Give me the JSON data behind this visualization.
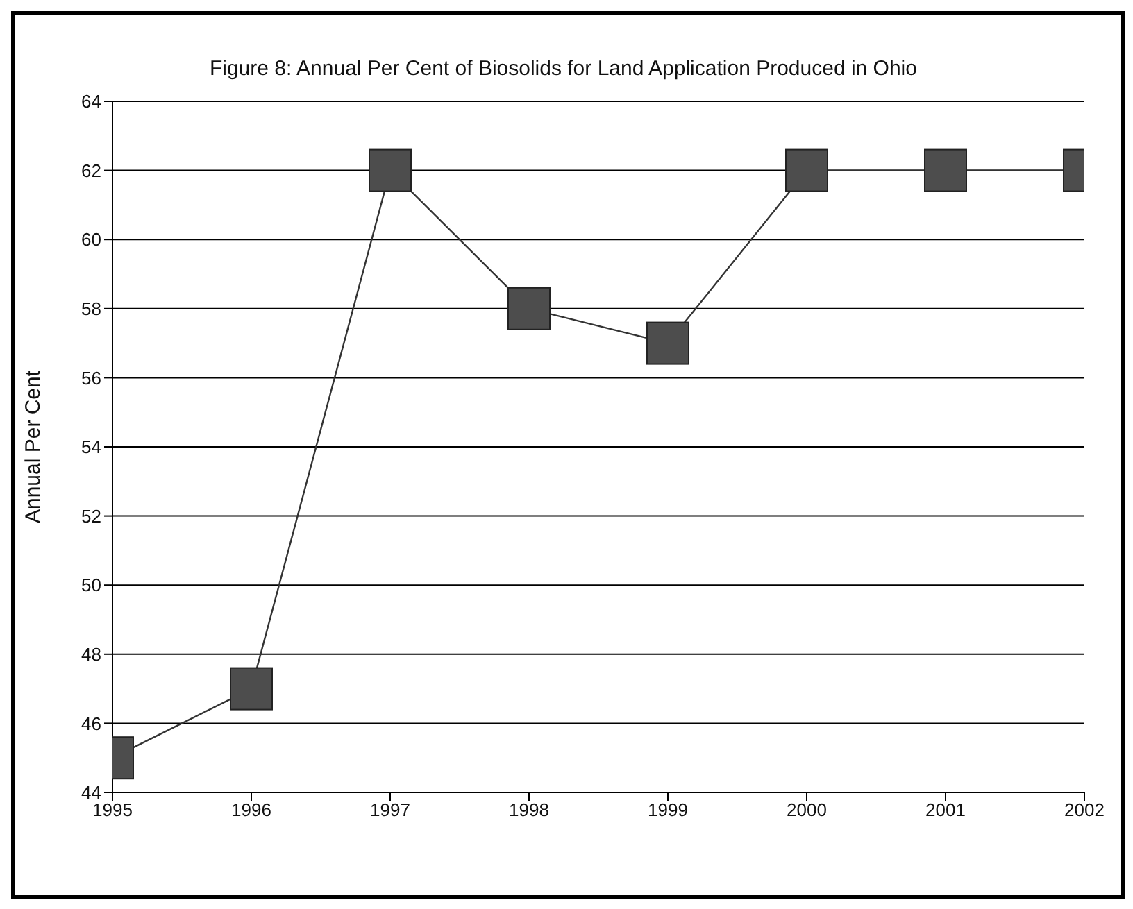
{
  "chart_data": {
    "type": "line",
    "title": "Figure 8: Annual Per Cent of Biosolids for Land Application Produced in Ohio",
    "ylabel": "Annual Per Cent",
    "x": [
      1995,
      1996,
      1997,
      1998,
      1999,
      2000,
      2001,
      2002
    ],
    "series": [
      {
        "color": "#4d4d4d",
        "values": [
          45,
          47,
          62,
          58,
          57,
          62,
          62,
          62
        ]
      }
    ],
    "xlim": [
      1995,
      2002
    ],
    "xticks": [
      1995,
      1996,
      1997,
      1998,
      1999,
      2000,
      2001,
      2002
    ],
    "ylim": [
      44,
      64
    ],
    "yticks": [
      44,
      46,
      48,
      50,
      52,
      54,
      56,
      58,
      60,
      62,
      64
    ],
    "grid": "y",
    "marker": "square",
    "line_style": "solid"
  }
}
